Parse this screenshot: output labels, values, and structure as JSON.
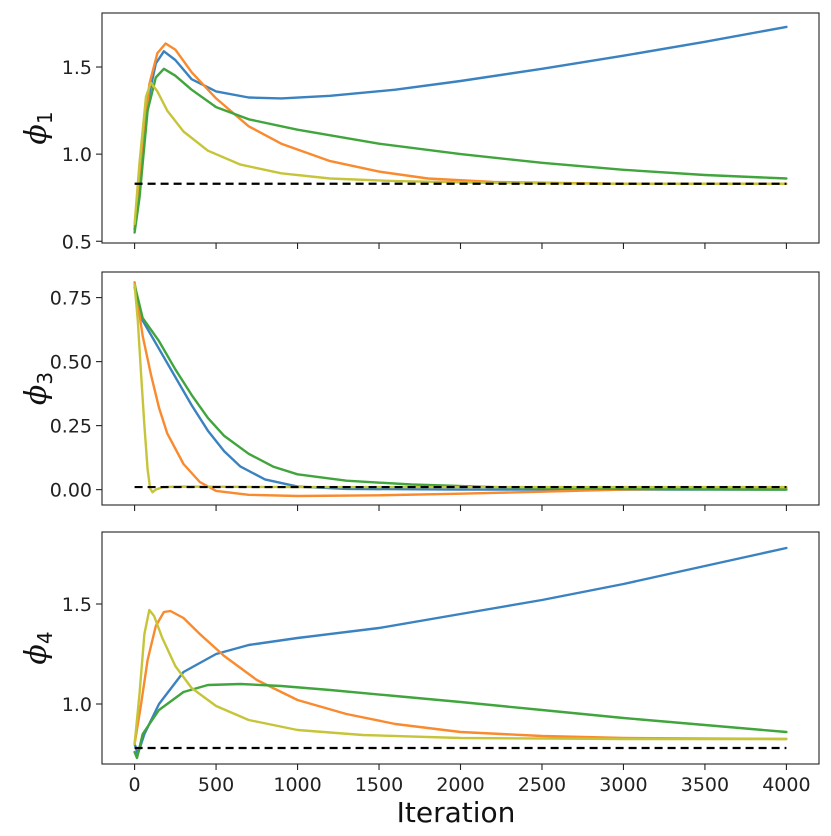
{
  "chart_data": {
    "type": "line",
    "xlabel": "Iteration",
    "x_ticks": [
      "0",
      "500",
      "1000",
      "1500",
      "2000",
      "2500",
      "3000",
      "3500",
      "4000"
    ],
    "xlim": [
      -200,
      4200
    ],
    "colors": {
      "blue": "#3a82c0",
      "orange": "#f98a2e",
      "green": "#40a53c",
      "olive": "#c6c53a",
      "reference": "#000000"
    },
    "panels": [
      {
        "ylabel_symbol": "ϕ",
        "ylabel_sub": "1",
        "ylim": [
          0.49,
          1.81
        ],
        "y_ticks": [
          "0.5",
          "1.0",
          "1.5"
        ],
        "y_tick_values": [
          0.5,
          1.0,
          1.5
        ],
        "reference": 0.83,
        "series": [
          {
            "name": "blue",
            "points": [
              [
                0,
                0.57
              ],
              [
                30,
                0.8
              ],
              [
                80,
                1.3
              ],
              [
                130,
                1.52
              ],
              [
                180,
                1.59
              ],
              [
                250,
                1.54
              ],
              [
                350,
                1.43
              ],
              [
                500,
                1.36
              ],
              [
                700,
                1.325
              ],
              [
                900,
                1.32
              ],
              [
                1200,
                1.335
              ],
              [
                1600,
                1.37
              ],
              [
                2000,
                1.42
              ],
              [
                2500,
                1.49
              ],
              [
                3000,
                1.565
              ],
              [
                3500,
                1.645
              ],
              [
                4000,
                1.73
              ]
            ]
          },
          {
            "name": "orange",
            "points": [
              [
                0,
                0.58
              ],
              [
                40,
                0.9
              ],
              [
                90,
                1.4
              ],
              [
                140,
                1.58
              ],
              [
                190,
                1.635
              ],
              [
                250,
                1.6
              ],
              [
                350,
                1.47
              ],
              [
                500,
                1.32
              ],
              [
                700,
                1.16
              ],
              [
                900,
                1.06
              ],
              [
                1200,
                0.96
              ],
              [
                1500,
                0.9
              ],
              [
                1800,
                0.86
              ],
              [
                2200,
                0.84
              ],
              [
                2600,
                0.835
              ],
              [
                3000,
                0.83
              ],
              [
                4000,
                0.83
              ]
            ]
          },
          {
            "name": "green",
            "points": [
              [
                0,
                0.55
              ],
              [
                30,
                0.75
              ],
              [
                80,
                1.25
              ],
              [
                130,
                1.44
              ],
              [
                180,
                1.49
              ],
              [
                250,
                1.45
              ],
              [
                350,
                1.37
              ],
              [
                500,
                1.27
              ],
              [
                700,
                1.2
              ],
              [
                1000,
                1.14
              ],
              [
                1500,
                1.06
              ],
              [
                2000,
                1.0
              ],
              [
                2500,
                0.95
              ],
              [
                3000,
                0.91
              ],
              [
                3500,
                0.88
              ],
              [
                4000,
                0.86
              ]
            ]
          },
          {
            "name": "olive",
            "points": [
              [
                0,
                0.6
              ],
              [
                30,
                0.95
              ],
              [
                70,
                1.33
              ],
              [
                100,
                1.41
              ],
              [
                140,
                1.36
              ],
              [
                200,
                1.25
              ],
              [
                300,
                1.13
              ],
              [
                450,
                1.02
              ],
              [
                650,
                0.94
              ],
              [
                900,
                0.89
              ],
              [
                1200,
                0.86
              ],
              [
                1600,
                0.845
              ],
              [
                2200,
                0.835
              ],
              [
                3000,
                0.83
              ],
              [
                4000,
                0.83
              ]
            ]
          }
        ]
      },
      {
        "ylabel_symbol": "ϕ",
        "ylabel_sub": "3",
        "ylim": [
          -0.06,
          0.85
        ],
        "y_ticks": [
          "0.00",
          "0.25",
          "0.50",
          "0.75"
        ],
        "y_tick_values": [
          0.0,
          0.25,
          0.5,
          0.75
        ],
        "reference": 0.01,
        "series": [
          {
            "name": "blue",
            "points": [
              [
                0,
                0.79
              ],
              [
                50,
                0.66
              ],
              [
                150,
                0.55
              ],
              [
                250,
                0.44
              ],
              [
                350,
                0.33
              ],
              [
                450,
                0.23
              ],
              [
                550,
                0.15
              ],
              [
                650,
                0.09
              ],
              [
                800,
                0.04
              ],
              [
                1000,
                0.012
              ],
              [
                1300,
                0.003
              ],
              [
                2000,
                0.0
              ],
              [
                4000,
                0.0
              ]
            ]
          },
          {
            "name": "orange",
            "points": [
              [
                0,
                0.81
              ],
              [
                50,
                0.6
              ],
              [
                100,
                0.45
              ],
              [
                150,
                0.32
              ],
              [
                200,
                0.22
              ],
              [
                300,
                0.1
              ],
              [
                400,
                0.03
              ],
              [
                500,
                -0.005
              ],
              [
                700,
                -0.02
              ],
              [
                1000,
                -0.025
              ],
              [
                1500,
                -0.022
              ],
              [
                2000,
                -0.016
              ],
              [
                2500,
                -0.008
              ],
              [
                3000,
                0.0
              ],
              [
                3500,
                0.005
              ],
              [
                4000,
                0.008
              ]
            ]
          },
          {
            "name": "green",
            "points": [
              [
                0,
                0.8
              ],
              [
                50,
                0.67
              ],
              [
                150,
                0.58
              ],
              [
                250,
                0.47
              ],
              [
                350,
                0.37
              ],
              [
                450,
                0.28
              ],
              [
                550,
                0.21
              ],
              [
                700,
                0.14
              ],
              [
                850,
                0.09
              ],
              [
                1000,
                0.06
              ],
              [
                1300,
                0.035
              ],
              [
                1700,
                0.02
              ],
              [
                2200,
                0.01
              ],
              [
                3000,
                0.003
              ],
              [
                4000,
                0.0
              ]
            ]
          },
          {
            "name": "olive",
            "points": [
              [
                0,
                0.8
              ],
              [
                20,
                0.66
              ],
              [
                40,
                0.45
              ],
              [
                60,
                0.25
              ],
              [
                80,
                0.08
              ],
              [
                95,
                0.005
              ],
              [
                110,
                -0.01
              ],
              [
                130,
                0.0
              ],
              [
                170,
                0.01
              ],
              [
                300,
                0.012
              ],
              [
                1000,
                0.01
              ],
              [
                4000,
                0.01
              ]
            ]
          }
        ]
      },
      {
        "ylabel_symbol": "ϕ",
        "ylabel_sub": "4",
        "ylim": [
          0.7,
          1.86
        ],
        "y_ticks": [
          "1.0",
          "1.5"
        ],
        "y_tick_values": [
          1.0,
          1.5
        ],
        "reference": 0.78,
        "series": [
          {
            "name": "blue",
            "points": [
              [
                0,
                0.8
              ],
              [
                20,
                0.75
              ],
              [
                60,
                0.85
              ],
              [
                150,
                1.0
              ],
              [
                300,
                1.16
              ],
              [
                500,
                1.25
              ],
              [
                700,
                1.295
              ],
              [
                1000,
                1.33
              ],
              [
                1500,
                1.38
              ],
              [
                2000,
                1.45
              ],
              [
                2500,
                1.52
              ],
              [
                3000,
                1.6
              ],
              [
                3500,
                1.69
              ],
              [
                4000,
                1.78
              ]
            ]
          },
          {
            "name": "orange",
            "points": [
              [
                0,
                0.8
              ],
              [
                40,
                1.0
              ],
              [
                80,
                1.22
              ],
              [
                130,
                1.39
              ],
              [
                180,
                1.46
              ],
              [
                220,
                1.465
              ],
              [
                300,
                1.43
              ],
              [
                400,
                1.35
              ],
              [
                550,
                1.24
              ],
              [
                750,
                1.12
              ],
              [
                1000,
                1.02
              ],
              [
                1300,
                0.95
              ],
              [
                1600,
                0.9
              ],
              [
                2000,
                0.86
              ],
              [
                2500,
                0.84
              ],
              [
                3000,
                0.83
              ],
              [
                4000,
                0.825
              ]
            ]
          },
          {
            "name": "green",
            "points": [
              [
                0,
                0.76
              ],
              [
                15,
                0.73
              ],
              [
                50,
                0.85
              ],
              [
                150,
                0.97
              ],
              [
                300,
                1.06
              ],
              [
                450,
                1.095
              ],
              [
                650,
                1.1
              ],
              [
                900,
                1.09
              ],
              [
                1200,
                1.07
              ],
              [
                1600,
                1.04
              ],
              [
                2000,
                1.01
              ],
              [
                2500,
                0.97
              ],
              [
                3000,
                0.93
              ],
              [
                3500,
                0.895
              ],
              [
                4000,
                0.86
              ]
            ]
          },
          {
            "name": "olive",
            "points": [
              [
                0,
                0.8
              ],
              [
                30,
                1.05
              ],
              [
                60,
                1.35
              ],
              [
                90,
                1.47
              ],
              [
                120,
                1.44
              ],
              [
                170,
                1.33
              ],
              [
                250,
                1.19
              ],
              [
                350,
                1.08
              ],
              [
                500,
                0.99
              ],
              [
                700,
                0.92
              ],
              [
                1000,
                0.87
              ],
              [
                1400,
                0.845
              ],
              [
                2000,
                0.83
              ],
              [
                3000,
                0.825
              ],
              [
                4000,
                0.825
              ]
            ]
          }
        ]
      }
    ]
  }
}
